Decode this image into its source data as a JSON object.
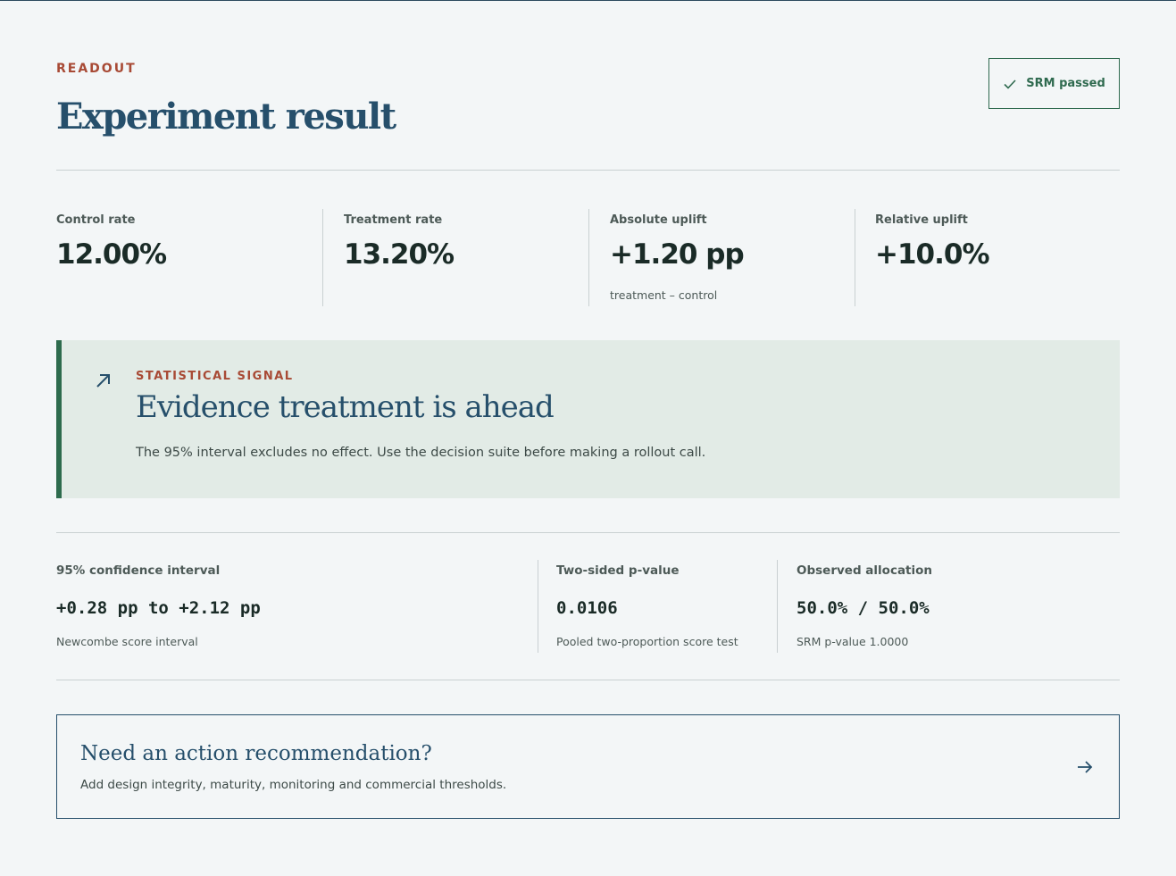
{
  "header": {
    "eyebrow": "READOUT",
    "title": "Experiment result",
    "srm_badge": {
      "label": "SRM passed",
      "icon": "check-icon"
    }
  },
  "metrics": [
    {
      "label": "Control rate",
      "value": "12.00%",
      "note": ""
    },
    {
      "label": "Treatment rate",
      "value": "13.20%",
      "note": ""
    },
    {
      "label": "Absolute uplift",
      "value": "+1.20 pp",
      "note": "treatment – control"
    },
    {
      "label": "Relative uplift",
      "value": "+10.0%",
      "note": ""
    }
  ],
  "signal": {
    "icon": "arrow-up-right-icon",
    "eyebrow": "STATISTICAL SIGNAL",
    "title": "Evidence treatment is ahead",
    "body": "The 95% interval excludes no effect. Use the decision suite before making a rollout call."
  },
  "stats": [
    {
      "label": "95% confidence interval",
      "value": "+0.28 pp to +2.12 pp",
      "note": "Newcombe score interval"
    },
    {
      "label": "Two-sided p-value",
      "value": "0.0106",
      "note": "Pooled two-proportion score test"
    },
    {
      "label": "Observed allocation",
      "value": "50.0% / 50.0%",
      "note": "SRM p-value 1.0000"
    }
  ],
  "cta": {
    "title": "Need an action recommendation?",
    "body": "Add design integrity, maturity, monitoring and commercial thresholds.",
    "icon": "arrow-right-icon"
  },
  "colors": {
    "background": "#f3f6f7",
    "accent_red": "#a84a35",
    "heading_blue": "#264f6b",
    "success_green": "#2f6a4f",
    "signal_bg": "#e2ebe6"
  }
}
